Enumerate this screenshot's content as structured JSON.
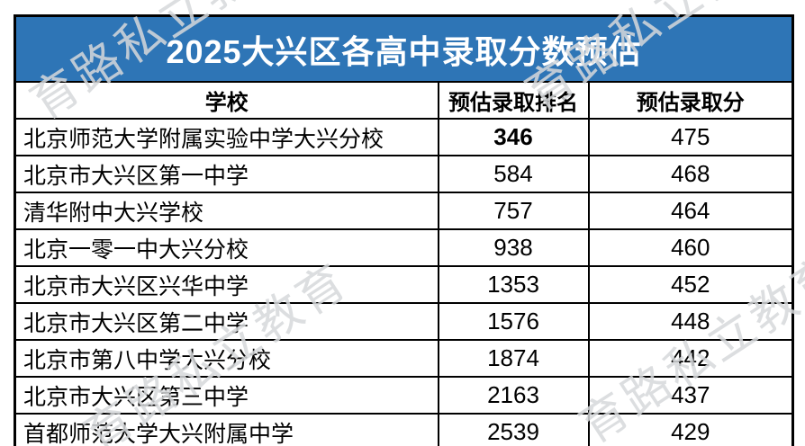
{
  "title": "2025大兴区各高中录取分数预估",
  "watermark": {
    "text": "育路私立教育"
  },
  "colors": {
    "accent_blue": "#2E75B6",
    "border_black": "#000000",
    "title_text": "#FFFFFF",
    "watermark_gray": "#D6D8DA"
  },
  "table": {
    "headers": [
      "学校",
      "预估录取排名",
      "预估录取分"
    ],
    "rows": [
      {
        "school": "北京师范大学附属实验中学大兴分校",
        "rank": "346",
        "score": "475"
      },
      {
        "school": "北京市大兴区第一中学",
        "rank": "584",
        "score": "468"
      },
      {
        "school": "清华附中大兴学校",
        "rank": "757",
        "score": "464"
      },
      {
        "school": "北京一零一中大兴分校",
        "rank": "938",
        "score": "460"
      },
      {
        "school": "北京市大兴区兴华中学",
        "rank": "1353",
        "score": "452"
      },
      {
        "school": "北京市大兴区第二中学",
        "rank": "1576",
        "score": "448"
      },
      {
        "school": "北京市第八中学大兴分校",
        "rank": "1874",
        "score": "442"
      },
      {
        "school": "北京市大兴区第三中学",
        "rank": "2163",
        "score": "437"
      },
      {
        "school": "首都师范大学大兴附属中学",
        "rank": "2539",
        "score": "429"
      }
    ]
  },
  "chart_data": {
    "type": "table",
    "title": "2025大兴区各高中录取分数预估",
    "columns": [
      "学校",
      "预估录取排名",
      "预估录取分"
    ],
    "rows": [
      [
        "北京师范大学附属实验中学大兴分校",
        346,
        475
      ],
      [
        "北京市大兴区第一中学",
        584,
        468
      ],
      [
        "清华附中大兴学校",
        757,
        464
      ],
      [
        "北京一零一中大兴分校",
        938,
        460
      ],
      [
        "北京市大兴区兴华中学",
        1353,
        452
      ],
      [
        "北京市大兴区第二中学",
        1576,
        448
      ],
      [
        "北京市第八中学大兴分校",
        1874,
        442
      ],
      [
        "北京市大兴区第三中学",
        2163,
        437
      ],
      [
        "首都师范大学大兴附属中学",
        2539,
        429
      ]
    ]
  }
}
